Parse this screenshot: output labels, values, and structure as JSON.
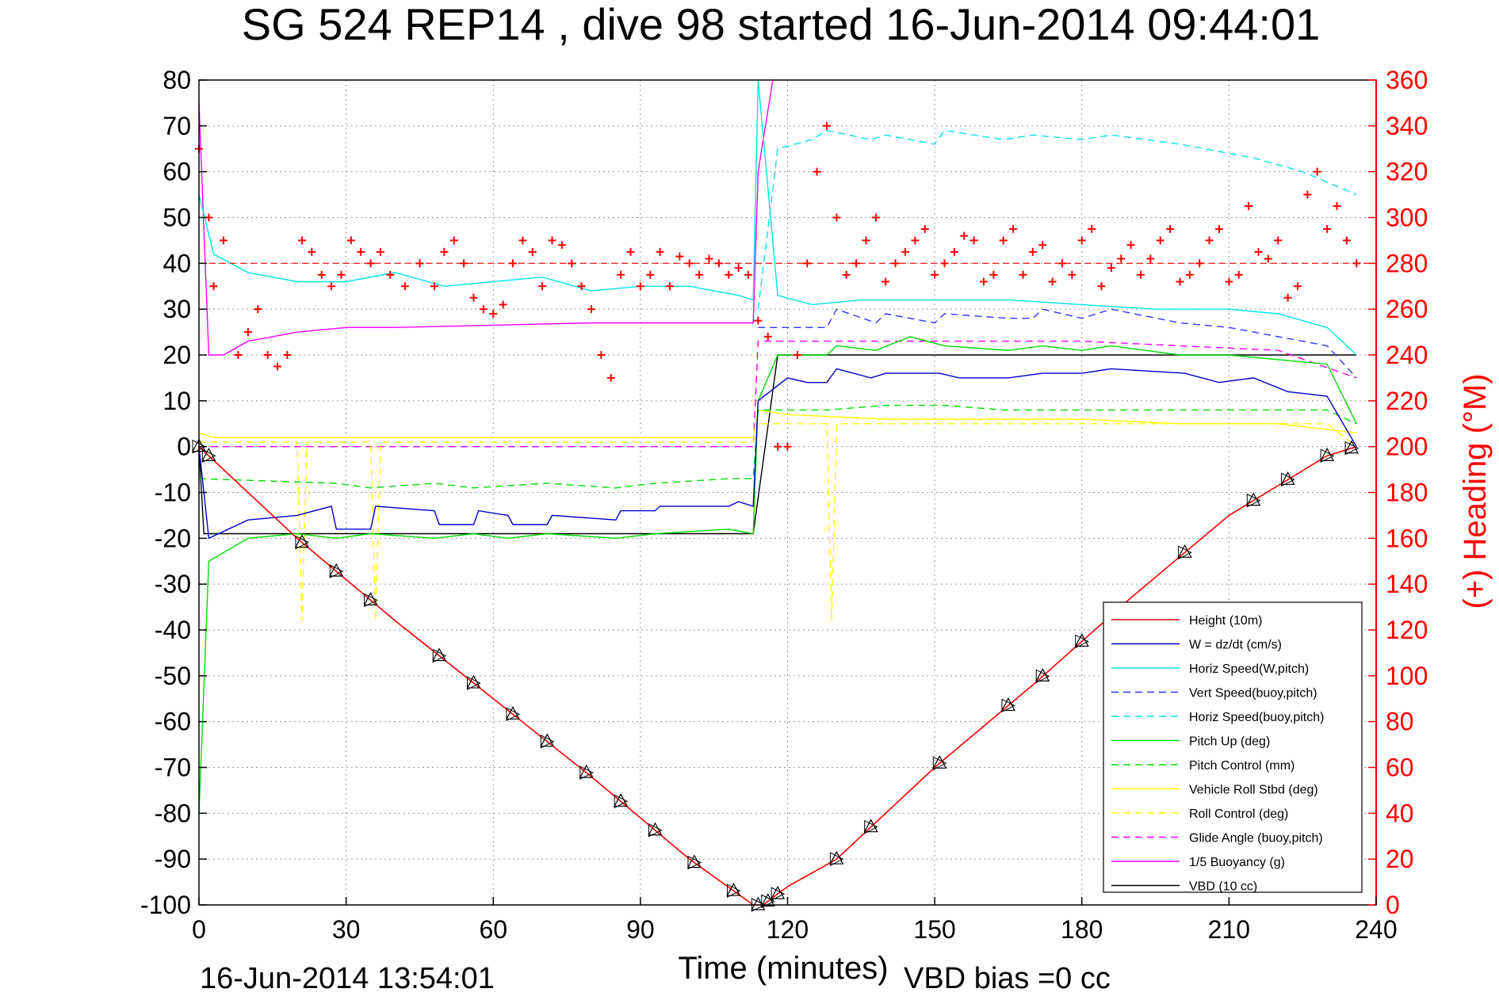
{
  "chart_data": {
    "type": "line",
    "title": "SG 524   REP14  , dive 98 started 16-Jun-2014 09:44:01",
    "xlabel": "Time (minutes)",
    "ylabel_right": "(+) Heading (°M)",
    "footer_left": "16-Jun-2014 13:54:01",
    "footer_right": "VBD bias =0 cc",
    "xlim": [
      0,
      240
    ],
    "ylim_left": [
      -100,
      80
    ],
    "ylim_right": [
      0,
      360
    ],
    "x_ticks": [
      "0",
      "30",
      "60",
      "90",
      "120",
      "150",
      "180",
      "210",
      "240"
    ],
    "y_ticks_left": [
      "80",
      "70",
      "60",
      "50",
      "40",
      "30",
      "20",
      "10",
      "0",
      "-10",
      "-20",
      "-30",
      "-40",
      "-50",
      "-60",
      "-70",
      "-80",
      "-90",
      "-100"
    ],
    "y_ticks_right": [
      "360",
      "340",
      "320",
      "300",
      "280",
      "260",
      "240",
      "220",
      "200",
      "180",
      "160",
      "140",
      "120",
      "100",
      "80",
      "60",
      "40",
      "20",
      "0"
    ],
    "grid": true,
    "legend_position": "bottom-right",
    "colors": {
      "height": "#ff0000",
      "w": "#0000cc",
      "horiz_speed_w": "#00e5e5",
      "vert_speed_buoy": "#3333ff",
      "horiz_speed_buoy": "#00e5e5",
      "pitch_up": "#00dd00",
      "pitch_control": "#00dd00",
      "roll": "#ffff00",
      "roll_control": "#ffff00",
      "glide_angle": "#ff00ff",
      "buoyancy": "#ff00ff",
      "vbd": "#000000",
      "heading": "#ff0000"
    },
    "series": [
      {
        "name": "Height (10m)",
        "color": "#ff0000",
        "style": "solid",
        "x": [
          0,
          20,
          40,
          60,
          80,
          100,
          113,
          115,
          120,
          130,
          150,
          170,
          190,
          210,
          230,
          236
        ],
        "y": [
          0,
          -20,
          -38,
          -55,
          -72,
          -90,
          -100,
          -100,
          -96,
          -90,
          -70,
          -52,
          -33,
          -15,
          -2,
          0
        ]
      },
      {
        "name": "W = dz/dt (cm/s)",
        "color": "#0000cc",
        "style": "solid",
        "x": [
          0,
          2,
          10,
          20,
          27,
          28,
          35,
          36,
          48,
          49,
          56,
          57,
          63,
          64,
          71,
          72,
          85,
          86,
          93,
          94,
          108,
          110,
          113,
          114,
          120,
          124,
          128,
          130,
          137,
          140,
          151,
          155,
          165,
          172,
          180,
          186,
          201,
          208,
          215,
          222,
          230,
          236
        ],
        "y": [
          0,
          -20,
          -16,
          -15,
          -13,
          -18,
          -18,
          -13,
          -14,
          -17,
          -17,
          -14,
          -15,
          -17,
          -17,
          -15,
          -16,
          -14,
          -14,
          -13,
          -13,
          -12,
          -13,
          10,
          15,
          14,
          14,
          17,
          15,
          16,
          16,
          15,
          15,
          16,
          16,
          17,
          16,
          14,
          15,
          12,
          11,
          0
        ]
      },
      {
        "name": "Horiz Speed(W,pitch)",
        "color": "#00e5e5",
        "style": "solid",
        "x": [
          0,
          3,
          10,
          20,
          30,
          40,
          50,
          60,
          70,
          80,
          90,
          100,
          110,
          113,
          114,
          118,
          125,
          135,
          150,
          165,
          180,
          195,
          210,
          220,
          230,
          236
        ],
        "y": [
          55,
          42,
          38,
          36,
          36,
          38,
          35,
          36,
          37,
          34,
          35,
          35,
          33,
          32,
          80,
          33,
          31,
          32,
          32,
          32,
          31,
          30,
          30,
          29,
          26,
          20
        ]
      },
      {
        "name": "Vert Speed(buoy,pitch)",
        "color": "#3333ff",
        "style": "dashed",
        "x": [
          114,
          120,
          128,
          130,
          138,
          140,
          150,
          152,
          165,
          170,
          172,
          180,
          186,
          200,
          210,
          230,
          236
        ],
        "y": [
          26,
          26,
          26,
          30,
          27,
          29,
          27,
          29,
          28,
          28,
          30,
          28,
          30,
          27,
          26,
          22,
          15
        ]
      },
      {
        "name": "Horiz Speed(buoy,pitch)",
        "color": "#00e5e5",
        "style": "dashed",
        "x": [
          114,
          118,
          125,
          128,
          137,
          140,
          150,
          152,
          164,
          170,
          180,
          186,
          200,
          215,
          225,
          236
        ],
        "y": [
          30,
          65,
          67,
          69,
          67,
          68,
          66,
          69,
          67,
          68,
          67,
          68,
          66,
          63,
          60,
          55
        ]
      },
      {
        "name": "Pitch Up (deg)",
        "color": "#00dd00",
        "style": "solid",
        "x": [
          0,
          2,
          10,
          20,
          28,
          35,
          48,
          56,
          63,
          71,
          85,
          93,
          108,
          113,
          114,
          118,
          128,
          130,
          138,
          145,
          152,
          165,
          172,
          180,
          186,
          200,
          210,
          230,
          236
        ],
        "y": [
          -80,
          -25,
          -20,
          -19,
          -20,
          -19,
          -20,
          -19,
          -20,
          -19,
          -20,
          -19,
          -18,
          -19,
          10,
          20,
          20,
          22,
          21,
          24,
          22,
          21,
          22,
          21,
          22,
          20,
          20,
          18,
          5
        ]
      },
      {
        "name": "Pitch Control (mm)",
        "color": "#00dd00",
        "style": "dashed",
        "x": [
          0,
          28,
          35,
          48,
          56,
          71,
          85,
          93,
          108,
          113,
          114,
          120,
          128,
          140,
          152,
          164,
          180,
          200,
          230,
          236
        ],
        "y": [
          -7,
          -8,
          -9,
          -8,
          -9,
          -8,
          -9,
          -8,
          -7,
          -7,
          8,
          8,
          8,
          9,
          9,
          8,
          8,
          8,
          8,
          5
        ]
      },
      {
        "name": "Vehicle Roll Stbd (deg)",
        "color": "#ffff00",
        "style": "solid",
        "x": [
          0,
          3,
          20,
          40,
          60,
          80,
          100,
          113,
          114,
          120,
          140,
          160,
          180,
          200,
          220,
          236
        ],
        "y": [
          3,
          2,
          2,
          2,
          2,
          2,
          2,
          2,
          8,
          7,
          6,
          6,
          6,
          5,
          5,
          3
        ]
      },
      {
        "name": "Roll Control (deg)",
        "color": "#ffff00",
        "style": "dashed",
        "x": [
          0,
          20,
          21,
          22,
          35,
          36,
          37,
          60,
          90,
          113,
          114,
          128,
          129,
          130,
          160,
          200,
          230,
          236
        ],
        "y": [
          1,
          1,
          -38,
          1,
          1,
          -38,
          1,
          1,
          1,
          1,
          5,
          5,
          -38,
          5,
          5,
          5,
          5,
          0
        ]
      },
      {
        "name": "Glide Angle (buoy,pitch)",
        "color": "#ff00ff",
        "style": "dashed",
        "x": [
          0,
          113,
          114,
          120,
          140,
          160,
          180,
          200,
          220,
          236
        ],
        "y": [
          0,
          0,
          23,
          23,
          23,
          23,
          23,
          22,
          21,
          15
        ]
      },
      {
        "name": "1/5 Buoyancy (g)",
        "color": "#ff00ff",
        "style": "solid",
        "x": [
          0,
          2,
          5,
          10,
          15,
          20,
          30,
          40,
          60,
          80,
          100,
          113,
          114,
          117
        ],
        "y": [
          75,
          20,
          20,
          23,
          24,
          25,
          26,
          26,
          26.5,
          27,
          27,
          27,
          60,
          80
        ]
      },
      {
        "name": "VBD (10 cc)",
        "color": "#000000",
        "style": "solid",
        "x": [
          0,
          1,
          113,
          118,
          236
        ],
        "y": [
          0,
          -19,
          -19,
          20,
          20
        ]
      }
    ],
    "heading_series": {
      "name": "(+) Heading (°M)",
      "axis": "right",
      "color": "#ff0000",
      "marker": "+",
      "reference_line": 280,
      "x": [
        0,
        2,
        3,
        5,
        8,
        10,
        12,
        14,
        16,
        18,
        21,
        23,
        25,
        27,
        29,
        31,
        33,
        35,
        37,
        39,
        42,
        45,
        48,
        50,
        52,
        54,
        56,
        58,
        60,
        62,
        64,
        66,
        68,
        70,
        72,
        74,
        76,
        78,
        80,
        82,
        84,
        86,
        88,
        90,
        92,
        94,
        96,
        98,
        100,
        102,
        104,
        106,
        108,
        110,
        112,
        114,
        116,
        118,
        120,
        122,
        124,
        126,
        128,
        130,
        132,
        134,
        136,
        138,
        140,
        142,
        144,
        146,
        148,
        150,
        152,
        154,
        156,
        158,
        160,
        162,
        164,
        166,
        168,
        170,
        172,
        174,
        176,
        178,
        180,
        182,
        184,
        186,
        188,
        190,
        192,
        194,
        196,
        198,
        200,
        202,
        204,
        206,
        208,
        210,
        212,
        214,
        216,
        218,
        220,
        222,
        224,
        226,
        228,
        230,
        232,
        234,
        236
      ],
      "y": [
        330,
        300,
        270,
        290,
        240,
        250,
        260,
        240,
        235,
        240,
        290,
        285,
        275,
        270,
        275,
        290,
        285,
        280,
        285,
        275,
        270,
        280,
        270,
        285,
        290,
        280,
        265,
        260,
        258,
        262,
        280,
        290,
        285,
        270,
        290,
        288,
        280,
        270,
        260,
        240,
        230,
        275,
        285,
        270,
        275,
        285,
        270,
        283,
        280,
        275,
        282,
        280,
        275,
        278,
        275,
        255,
        248,
        200,
        200,
        240,
        280,
        320,
        340,
        300,
        275,
        280,
        290,
        300,
        272,
        280,
        285,
        290,
        295,
        275,
        280,
        285,
        292,
        290,
        272,
        275,
        290,
        295,
        275,
        285,
        288,
        272,
        280,
        275,
        290,
        295,
        270,
        278,
        282,
        288,
        275,
        282,
        290,
        295,
        272,
        275,
        280,
        290,
        295,
        272,
        275,
        305,
        285,
        282,
        290,
        265,
        270,
        310,
        320,
        295,
        305,
        290,
        280
      ]
    }
  }
}
